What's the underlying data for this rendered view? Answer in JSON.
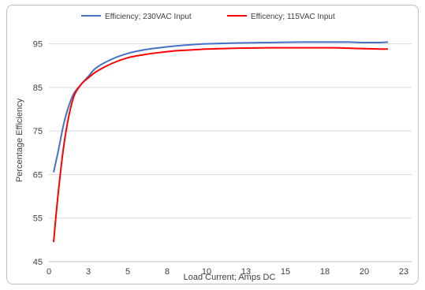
{
  "chart_data": {
    "type": "line",
    "title": "",
    "xlabel": "Load Current; Amps DC",
    "ylabel": "Percentage Efficiency",
    "xlim": [
      0,
      23
    ],
    "ylim": [
      45,
      100
    ],
    "xticks": [
      0,
      3,
      5,
      8,
      10,
      13,
      15,
      18,
      20,
      23
    ],
    "xtick_positions": [
      0,
      2.5,
      5,
      7.5,
      10,
      12.5,
      15,
      17.5,
      20,
      22.5
    ],
    "yticks": [
      45,
      55,
      65,
      75,
      85,
      95
    ],
    "grid": "horizontal",
    "legend_position": "top",
    "series": [
      {
        "name": "Efficiency; 230VAC Input",
        "color": "#4472c4",
        "x": [
          0.3,
          0.6,
          1.0,
          1.5,
          2.0,
          2.5,
          3.0,
          4.0,
          5.0,
          6.0,
          7.0,
          8.0,
          9.0,
          10.0,
          12.0,
          14.0,
          16.0,
          18.0,
          19.0,
          20.0,
          21.0,
          21.5
        ],
        "y": [
          65.5,
          70.5,
          77.5,
          83.0,
          85.5,
          87.5,
          89.5,
          91.5,
          92.8,
          93.6,
          94.1,
          94.5,
          94.8,
          95.0,
          95.2,
          95.3,
          95.4,
          95.4,
          95.4,
          95.3,
          95.3,
          95.4
        ]
      },
      {
        "name": "Efficency; 115VAC Input",
        "color": "#ff0000",
        "x": [
          0.3,
          0.6,
          1.0,
          1.5,
          2.0,
          2.5,
          3.0,
          4.0,
          5.0,
          6.0,
          7.0,
          8.0,
          9.0,
          10.0,
          12.0,
          14.0,
          16.0,
          18.0,
          19.0,
          20.0,
          21.0,
          21.5
        ],
        "y": [
          49.5,
          61.0,
          73.0,
          82.0,
          85.5,
          87.2,
          88.6,
          90.5,
          91.8,
          92.5,
          93.0,
          93.4,
          93.6,
          93.8,
          94.0,
          94.1,
          94.1,
          94.1,
          94.0,
          93.9,
          93.8,
          93.8
        ]
      }
    ]
  }
}
